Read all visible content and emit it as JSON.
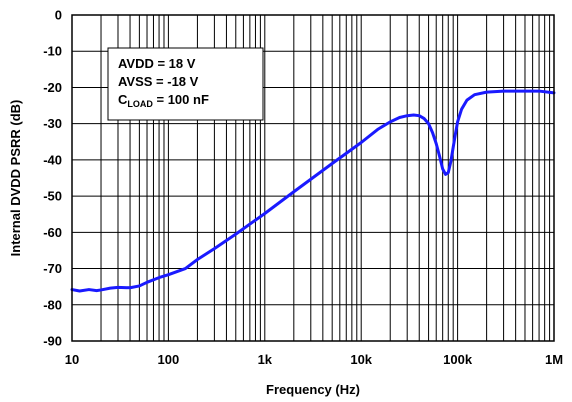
{
  "chart_data": {
    "type": "line",
    "xlabel": "Frequency (Hz)",
    "ylabel": "Internal  DVDD PSRR (dB)",
    "xscale": "log",
    "xlim": [
      10,
      1000000
    ],
    "ylim": [
      -90,
      0
    ],
    "grid": true,
    "x_tick_labels": [
      "10",
      "100",
      "1k",
      "10k",
      "100k",
      "1M"
    ],
    "y_ticks": [
      0,
      -10,
      -20,
      -30,
      -40,
      -50,
      -60,
      -70,
      -80,
      -90
    ],
    "y_tick_labels": [
      "0",
      "-10",
      "-20",
      "-30",
      "-40",
      "-50",
      "-60",
      "-70",
      "-80",
      "-90"
    ],
    "line_color": "#1a1aff",
    "annotation": {
      "line1": "AVDD = 18 V",
      "line2": "AVSS = -18 V",
      "line3_prefix": "C",
      "line3_sub": "LOAD",
      "line3_suffix": " = 100 nF"
    },
    "series": [
      {
        "x": [
          10,
          12,
          15,
          18,
          20,
          25,
          30,
          40,
          50,
          60,
          80,
          100,
          150,
          200,
          300,
          500,
          1000,
          2000,
          5000,
          10000,
          15000,
          20000,
          25000,
          30000,
          35000,
          40000,
          45000,
          50000,
          55000,
          60000,
          65000,
          70000,
          75000,
          80000,
          85000,
          90000,
          95000,
          100000,
          110000,
          125000,
          150000,
          200000,
          300000,
          400000,
          500000,
          700000,
          1000000
        ],
        "y": [
          -75.8,
          -76.2,
          -75.8,
          -76.1,
          -75.9,
          -75.4,
          -75.2,
          -75.3,
          -74.8,
          -73.8,
          -72.5,
          -71.7,
          -70.0,
          -67.5,
          -64.5,
          -60.5,
          -54.8,
          -48.8,
          -41.0,
          -35.2,
          -31.5,
          -29.5,
          -28.3,
          -27.8,
          -27.6,
          -27.8,
          -28.6,
          -30.0,
          -32.5,
          -35.5,
          -39.0,
          -42.5,
          -44.0,
          -43.5,
          -40.5,
          -36.5,
          -32.8,
          -29.5,
          -26.0,
          -23.5,
          -22.0,
          -21.3,
          -21.0,
          -21.0,
          -21.0,
          -21.0,
          -21.5
        ]
      }
    ]
  }
}
